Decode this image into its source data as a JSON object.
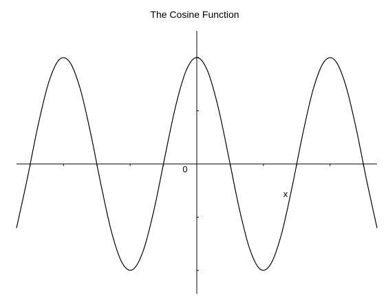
{
  "chart_data": {
    "type": "line",
    "title": "The Cosine Function",
    "xlabel": "x",
    "ylabel": "",
    "origin_label": "0",
    "function": "cos(x)",
    "xlim": [
      -8.5,
      8.5
    ],
    "ylim": [
      -1.22,
      1.25
    ],
    "grid": false,
    "legend": "none",
    "x_tick_step": 1.5707963,
    "y_tick_step": 0.5,
    "line_color": "#000000",
    "series": [
      {
        "x": [
          -8.5,
          -8.0,
          -7.5,
          -7.0,
          -6.5,
          -6.0,
          -5.5,
          -5.0,
          -4.5,
          -4.0,
          -3.5,
          -3.0,
          -2.5,
          -2.0,
          -1.5,
          -1.0,
          -0.5,
          0.0,
          0.5,
          1.0,
          1.5,
          2.0,
          2.5,
          3.0,
          3.5,
          4.0,
          4.5,
          5.0,
          5.5,
          6.0,
          6.5,
          7.0,
          7.5,
          8.0,
          8.5
        ],
        "values": [
          -0.602,
          -0.146,
          0.347,
          0.754,
          0.977,
          0.96,
          0.709,
          0.284,
          -0.211,
          -0.654,
          -0.936,
          -0.99,
          -0.801,
          -0.416,
          0.071,
          0.54,
          0.878,
          1.0,
          0.878,
          0.54,
          0.071,
          -0.416,
          -0.801,
          -0.99,
          -0.936,
          -0.654,
          -0.211,
          0.284,
          0.709,
          0.96,
          0.977,
          0.754,
          0.347,
          -0.146,
          -0.602
        ]
      }
    ]
  }
}
